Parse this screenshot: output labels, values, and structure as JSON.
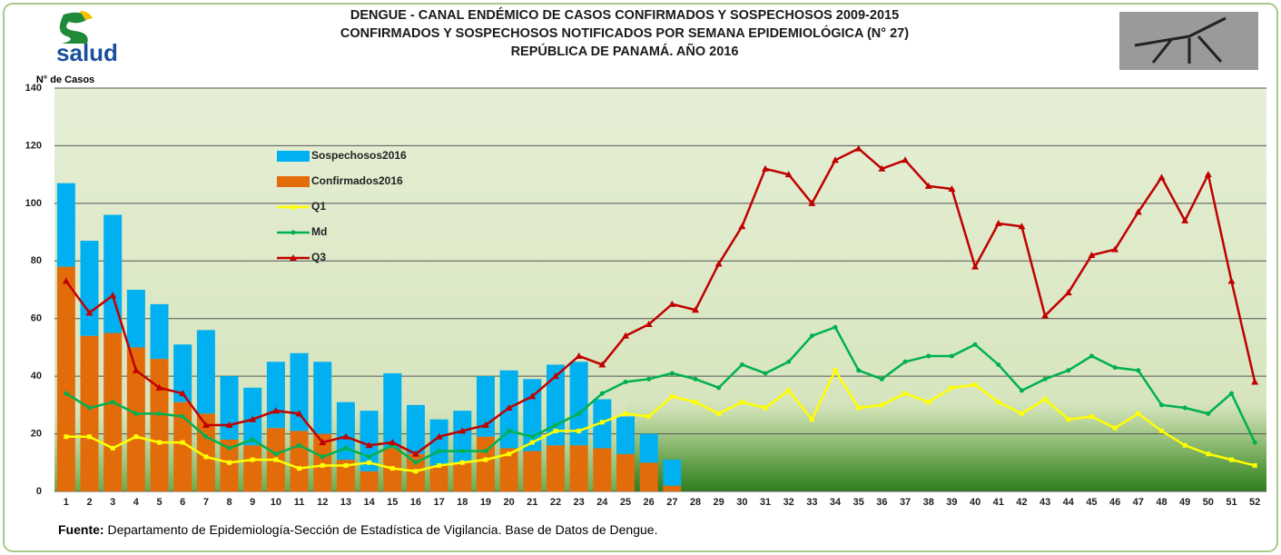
{
  "logo": {
    "text": "salud"
  },
  "chart_data": {
    "type": "combo",
    "title": [
      "DENGUE - CANAL ENDÉMICO DE CASOS CONFIRMADOS Y SOSPECHOSOS 2009-2015",
      "CONFIRMADOS Y SOSPECHOSOS NOTIFICADOS POR SEMANA EPIDEMIOLÓGICA (N° 27)",
      "REPÚBLICA DE PANAMÁ. AÑO 2016"
    ],
    "y_label": "N° de Casos",
    "source_label": "Fuente:",
    "source": "Departamento de Epidemiología-Sección de Estadística de Vigilancia. Base de Datos de Dengue.",
    "categories": [
      1,
      2,
      3,
      4,
      5,
      6,
      7,
      8,
      9,
      10,
      11,
      12,
      13,
      14,
      15,
      16,
      17,
      18,
      19,
      20,
      21,
      22,
      23,
      24,
      25,
      26,
      27,
      28,
      29,
      30,
      31,
      32,
      33,
      34,
      35,
      36,
      37,
      38,
      39,
      40,
      41,
      42,
      43,
      44,
      45,
      46,
      47,
      48,
      49,
      50,
      51,
      52
    ],
    "ylim": [
      0,
      140
    ],
    "yticks": [
      0,
      20,
      40,
      60,
      80,
      100,
      120,
      140
    ],
    "grid": true,
    "series": [
      {
        "name": "Confirmados2016",
        "color": "#e36c0a",
        "kind": "bar",
        "values": [
          78,
          54,
          55,
          50,
          46,
          31,
          27,
          18,
          16,
          22,
          21,
          20,
          11,
          7,
          15,
          13,
          9,
          10,
          19,
          15,
          14,
          16,
          16,
          15,
          13,
          10,
          2,
          null,
          null,
          null,
          null,
          null,
          null,
          null,
          null,
          null,
          null,
          null,
          null,
          null,
          null,
          null,
          null,
          null,
          null,
          null,
          null,
          null,
          null,
          null,
          null,
          null
        ]
      },
      {
        "name": "Sospechosos2016",
        "color": "#00b0f0",
        "kind": "bar",
        "values": [
          29,
          33,
          41,
          20,
          19,
          20,
          29,
          22,
          20,
          23,
          27,
          25,
          20,
          21,
          26,
          17,
          16,
          18,
          21,
          27,
          25,
          28,
          29,
          17,
          13,
          10,
          9,
          null,
          null,
          null,
          null,
          null,
          null,
          null,
          null,
          null,
          null,
          null,
          null,
          null,
          null,
          null,
          null,
          null,
          null,
          null,
          null,
          null,
          null,
          null,
          null,
          null
        ]
      },
      {
        "name": "Q1",
        "color": "#ffff00",
        "kind": "line",
        "marker": "square",
        "values": [
          19,
          19,
          15,
          19,
          17,
          17,
          12,
          10,
          11,
          11,
          8,
          9,
          9,
          10,
          8,
          7,
          9,
          10,
          11,
          13,
          17,
          21,
          21,
          24,
          27,
          26,
          33,
          31,
          27,
          31,
          29,
          35,
          25,
          42,
          29,
          30,
          34,
          31,
          36,
          37,
          31,
          27,
          32,
          25,
          26,
          22,
          27,
          21,
          16,
          13,
          11,
          9
        ]
      },
      {
        "name": "Md",
        "color": "#00b050",
        "kind": "line",
        "marker": "circle",
        "values": [
          34,
          29,
          31,
          27,
          27,
          26,
          19,
          15,
          18,
          13,
          16,
          12,
          15,
          12,
          16,
          10,
          14,
          14,
          14,
          21,
          19,
          23,
          27,
          34,
          38,
          39,
          41,
          39,
          36,
          44,
          41,
          45,
          54,
          57,
          42,
          39,
          45,
          47,
          47,
          51,
          44,
          35,
          39,
          42,
          47,
          43,
          42,
          30,
          29,
          27,
          34,
          17
        ]
      },
      {
        "name": "Q3",
        "color": "#c00000",
        "kind": "line",
        "marker": "triangle",
        "values": [
          73,
          62,
          68,
          42,
          36,
          34,
          23,
          23,
          25,
          28,
          27,
          17,
          19,
          16,
          17,
          13,
          19,
          21,
          23,
          29,
          33,
          40,
          47,
          44,
          54,
          58,
          65,
          63,
          79,
          92,
          112,
          110,
          100,
          115,
          119,
          112,
          115,
          106,
          105,
          78,
          93,
          92,
          61,
          69,
          82,
          84,
          97,
          109,
          94,
          110,
          73,
          38
        ]
      }
    ],
    "legend_order": [
      1,
      0,
      2,
      3,
      4
    ]
  }
}
